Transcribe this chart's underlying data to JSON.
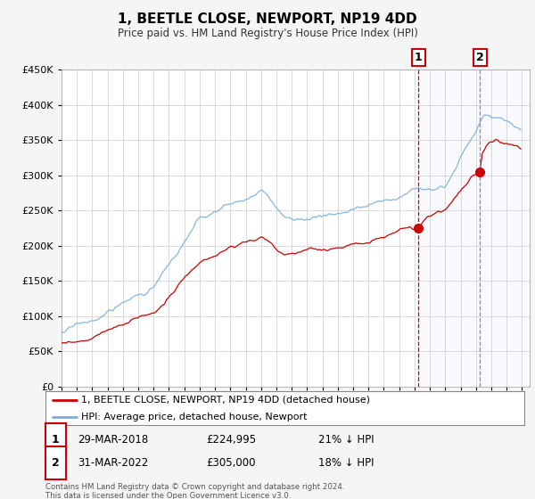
{
  "title": "1, BEETLE CLOSE, NEWPORT, NP19 4DD",
  "subtitle": "Price paid vs. HM Land Registry's House Price Index (HPI)",
  "ylim": [
    0,
    450000
  ],
  "yticks": [
    0,
    50000,
    100000,
    150000,
    200000,
    250000,
    300000,
    350000,
    400000,
    450000
  ],
  "xlim_start": 1995,
  "xlim_end": 2025.5,
  "legend_line1": "1, BEETLE CLOSE, NEWPORT, NP19 4DD (detached house)",
  "legend_line2": "HPI: Average price, detached house, Newport",
  "point1_label": "1",
  "point1_date": "29-MAR-2018",
  "point1_price": "£224,995",
  "point1_hpi": "21% ↓ HPI",
  "point1_x": 2018.25,
  "point1_y": 224995,
  "point2_label": "2",
  "point2_date": "31-MAR-2022",
  "point2_price": "£305,000",
  "point2_hpi": "18% ↓ HPI",
  "point2_x": 2022.25,
  "point2_y": 305000,
  "footnote": "Contains HM Land Registry data © Crown copyright and database right 2024.\nThis data is licensed under the Open Government Licence v3.0.",
  "line_color_red": "#cc0000",
  "line_color_blue": "#7aaddb",
  "shade_color": "#dde8f5",
  "plot_bg": "#ffffff",
  "grid_color": "#cccccc",
  "fig_bg": "#f5f5f5"
}
